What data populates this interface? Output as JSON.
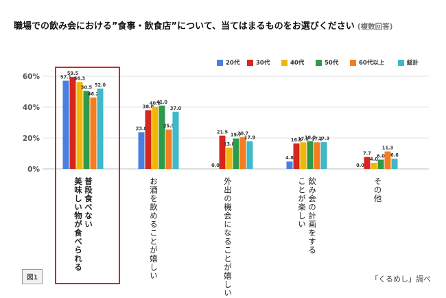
{
  "title": "職場での飲み会における”食事・飲食店”について、当てはまるものをお選びください",
  "title_note": "(複数回答)",
  "figure_label": "図1",
  "source": "「くるめし」調べ",
  "colors": {
    "20代": "#4a7fe0",
    "30代": "#d7261e",
    "40代": "#f2b705",
    "50代": "#2e9a4c",
    "60代以上": "#f57c1f",
    "総計": "#3fb8c8"
  },
  "chart_data": {
    "type": "bar",
    "title": "",
    "xlabel": "",
    "ylabel": "",
    "ylim": [
      0,
      60
    ],
    "yticks": [
      "0%",
      "20%",
      "40%",
      "60%"
    ],
    "ytick_values": [
      0,
      20,
      40,
      60
    ],
    "grid": true,
    "legend": "top-right",
    "categories": [
      [
        "普段食べない",
        "美味しい物が食べられる"
      ],
      [
        "お酒を飲める",
        "ことが嬉しい"
      ],
      [
        "外出の機会になる",
        "ことが嬉しい"
      ],
      [
        "飲み会の計画をする",
        "ことが楽しい"
      ],
      [
        "その他"
      ]
    ],
    "series": [
      {
        "name": "20代",
        "values": [
          57.1,
          23.8,
          0.0,
          4.8,
          0.0
        ]
      },
      {
        "name": "30代",
        "values": [
          59.5,
          38.0,
          21.5,
          16.5,
          7.7
        ]
      },
      {
        "name": "40代",
        "values": [
          56.3,
          40.2,
          13.8,
          17.2,
          4.0
        ]
      },
      {
        "name": "50代",
        "values": [
          50.5,
          41.0,
          19.7,
          18.0,
          6.0
        ]
      },
      {
        "name": "60代以上",
        "values": [
          46.2,
          25.5,
          20.7,
          17.2,
          11.3
        ]
      },
      {
        "name": "総計",
        "values": [
          52.0,
          37.0,
          17.9,
          17.3,
          6.6
        ]
      }
    ]
  }
}
